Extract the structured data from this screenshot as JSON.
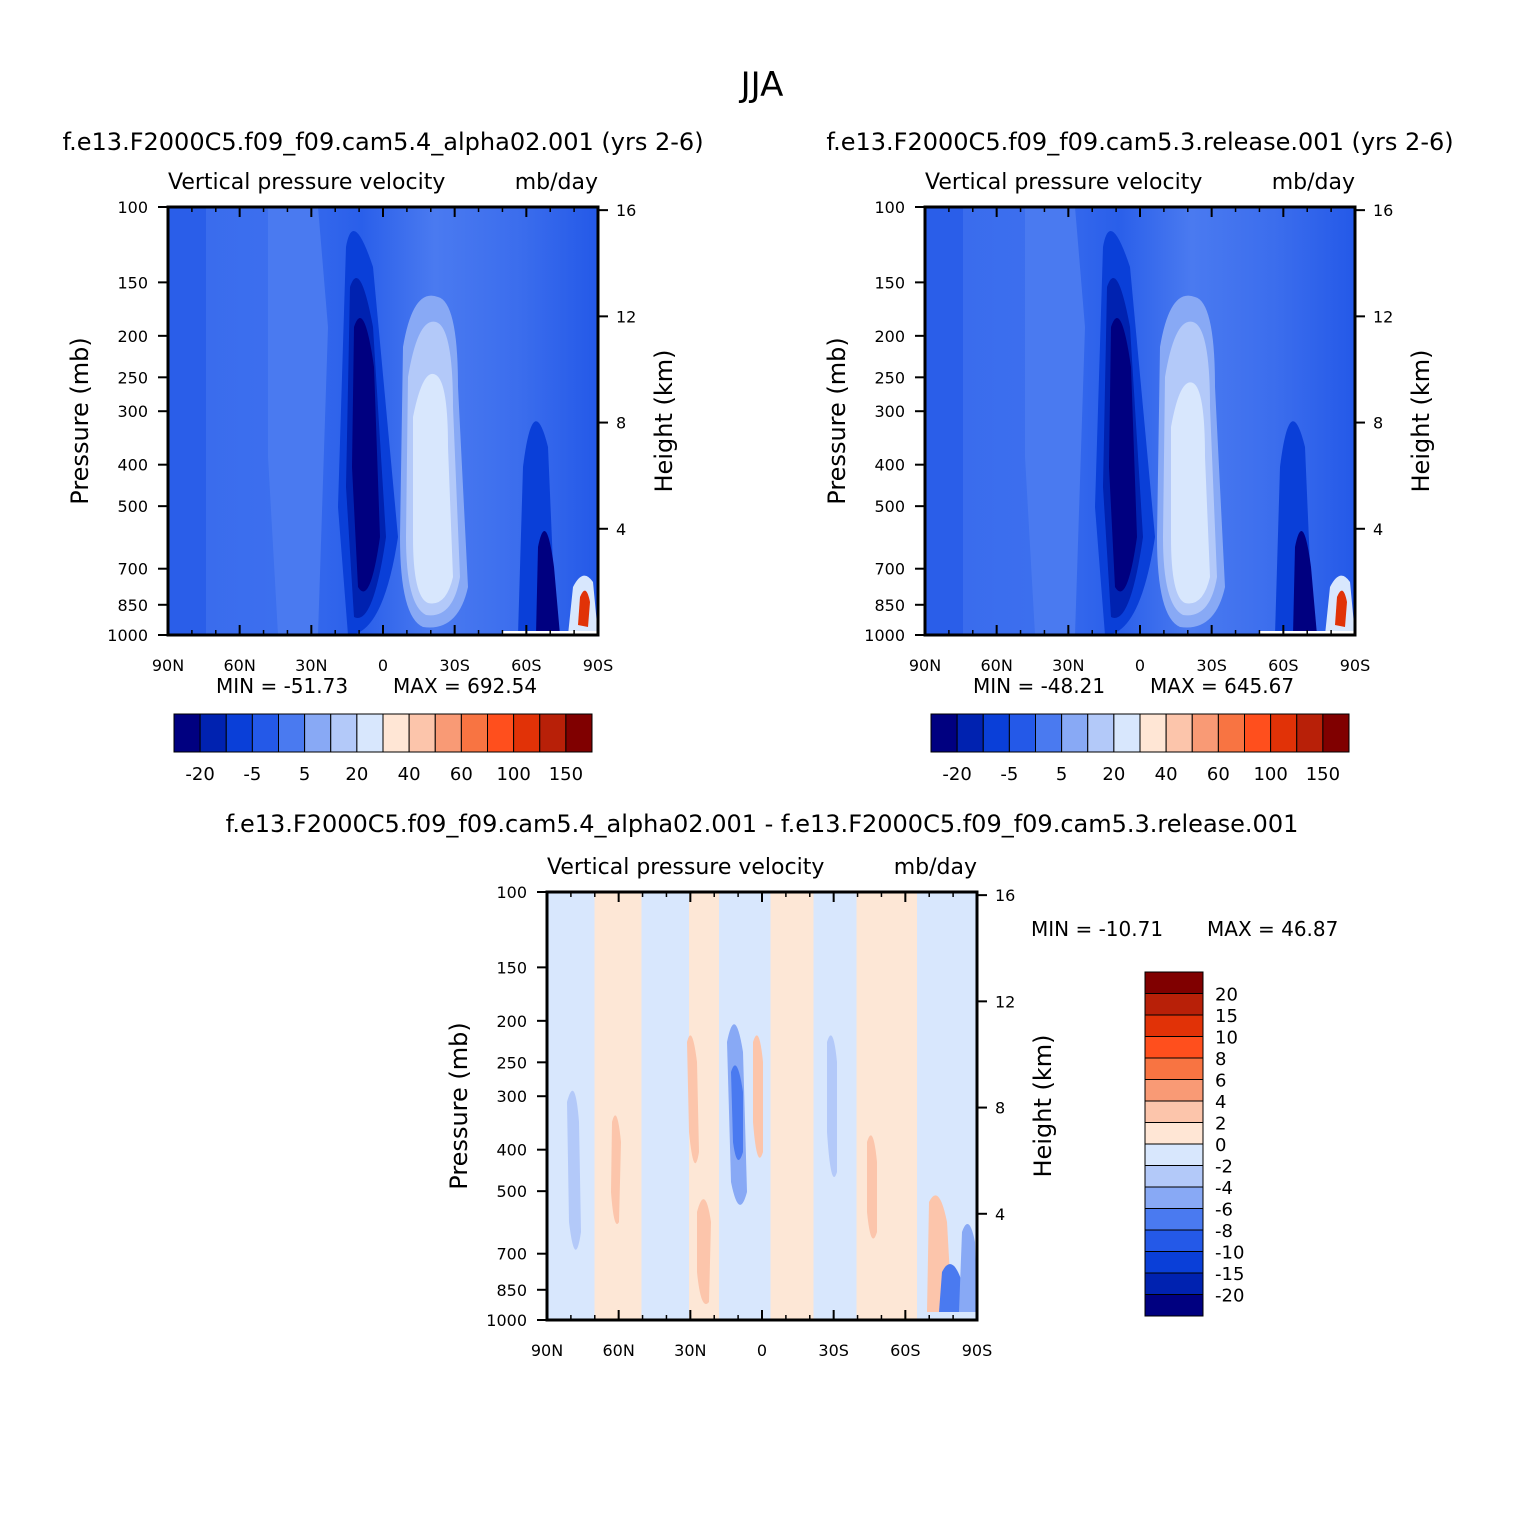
{
  "figure_title": "JJA",
  "panel_subtitle": "Vertical pressure velocity",
  "units_label": "mb/day",
  "colors": {
    "main_scale": [
      "#000080",
      "#0022b0",
      "#0a3fd8",
      "#2459e8",
      "#4a7af0",
      "#88a9f5",
      "#b3c9f9",
      "#d8e7fd",
      "#ffe6d5",
      "#fcc5ab",
      "#f99a75",
      "#f87442",
      "#ff4f1d",
      "#e13207",
      "#b82008",
      "#800000"
    ],
    "diff_scale": [
      "#000080",
      "#0022b0",
      "#0a3fd8",
      "#2459e8",
      "#4a7af0",
      "#88a9f5",
      "#b3c9f9",
      "#d8e7fd",
      "#ffe6d5",
      "#fcc5ab",
      "#f99a75",
      "#f87442",
      "#ff4f1d",
      "#e13207",
      "#b82008",
      "#800000"
    ]
  },
  "chart_data": [
    {
      "type": "heatmap",
      "title": "f.e13.F2000C5.f09_f09.cam5.4_alpha02.001 (yrs 2-6)",
      "subtitle": "Vertical pressure velocity",
      "units": "mb/day",
      "xlabel": "",
      "ylabel": "Pressure (mb)",
      "y2label": "Height (km)",
      "x_ticks": [
        "90N",
        "60N",
        "30N",
        "0",
        "30S",
        "60S",
        "90S"
      ],
      "y_ticks": [
        100,
        150,
        200,
        250,
        300,
        400,
        500,
        700,
        850,
        1000
      ],
      "y2_ticks": [
        16,
        12,
        8,
        4
      ],
      "log_scale_y": true,
      "min_label": "MIN = -51.73",
      "max_label": "MAX = 692.54",
      "min": -51.73,
      "max": 692.54,
      "colorbar_labels": [
        "-20",
        "-5",
        "5",
        "20",
        "40",
        "60",
        "100",
        "150"
      ]
    },
    {
      "type": "heatmap",
      "title": "f.e13.F2000C5.f09_f09.cam5.3.release.001 (yrs 2-6)",
      "subtitle": "Vertical pressure velocity",
      "units": "mb/day",
      "xlabel": "",
      "ylabel": "Pressure (mb)",
      "y2label": "Height (km)",
      "x_ticks": [
        "90N",
        "60N",
        "30N",
        "0",
        "30S",
        "60S",
        "90S"
      ],
      "y_ticks": [
        100,
        150,
        200,
        250,
        300,
        400,
        500,
        700,
        850,
        1000
      ],
      "y2_ticks": [
        16,
        12,
        8,
        4
      ],
      "log_scale_y": true,
      "min_label": "MIN = -48.21",
      "max_label": "MAX = 645.67",
      "min": -48.21,
      "max": 645.67,
      "colorbar_labels": [
        "-20",
        "-5",
        "5",
        "20",
        "40",
        "60",
        "100",
        "150"
      ]
    },
    {
      "type": "heatmap",
      "title": "f.e13.F2000C5.f09_f09.cam5.4_alpha02.001 - f.e13.F2000C5.f09_f09.cam5.3.release.001",
      "subtitle": "Vertical pressure velocity",
      "units": "mb/day",
      "xlabel": "",
      "ylabel": "Pressure (mb)",
      "y2label": "Height (km)",
      "x_ticks": [
        "90N",
        "60N",
        "30N",
        "0",
        "30S",
        "60S",
        "90S"
      ],
      "y_ticks": [
        100,
        150,
        200,
        250,
        300,
        400,
        500,
        700,
        850,
        1000
      ],
      "y2_ticks": [
        16,
        12,
        8,
        4
      ],
      "log_scale_y": true,
      "min_label": "MIN = -10.71",
      "max_label": "MAX = 46.87",
      "min": -10.71,
      "max": 46.87,
      "colorbar_labels": [
        "20",
        "15",
        "10",
        "8",
        "6",
        "4",
        "2",
        "0",
        "-2",
        "-4",
        "-6",
        "-8",
        "-10",
        "-15",
        "-20"
      ]
    }
  ]
}
